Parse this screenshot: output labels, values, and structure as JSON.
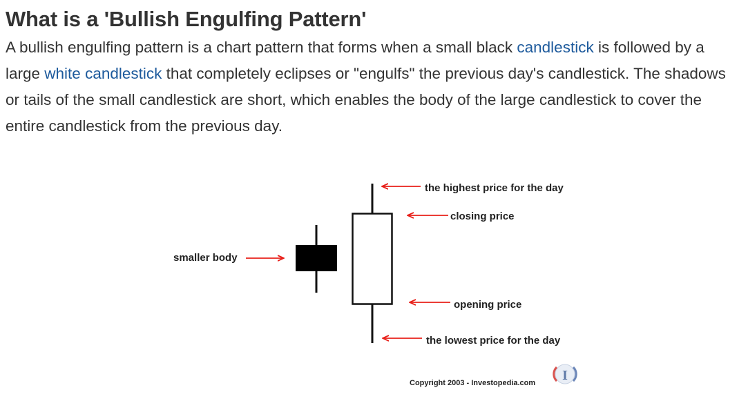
{
  "article": {
    "title": "What is a 'Bullish Engulfing Pattern'",
    "paragraph": {
      "part1": "A bullish engulfing pattern is a chart pattern that forms when a small black ",
      "link1": "candlestick",
      "part2": " is followed by a large ",
      "link2": "white candlestick",
      "part3": " that completely eclipses or \"engulfs\" the previous day's candlestick. The shadows or tails of the small candlestick are short, which enables the body of the large candlestick to cover the entire candlestick from the previous day."
    }
  },
  "figure": {
    "labels": {
      "smaller_body": "smaller body",
      "highest_price": "the highest price for the day",
      "closing_price": "closing price",
      "opening_price": "opening price",
      "lowest_price": "the lowest price for the day"
    },
    "copyright": "Copyright 2003 - Investopedia.com",
    "logo_letter": "I",
    "arrow_color": "#e8201a"
  }
}
